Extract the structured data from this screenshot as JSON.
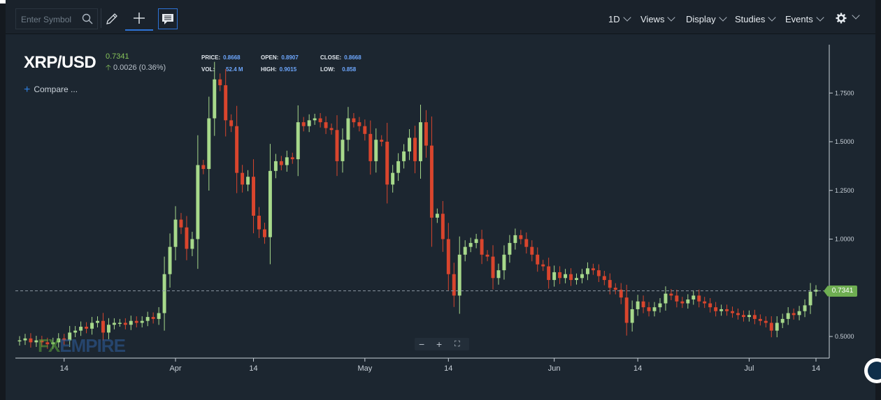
{
  "toolbar": {
    "search_placeholder": "Enter Symbol",
    "menus": [
      "1D",
      "Views",
      "Display",
      "Studies",
      "Events"
    ]
  },
  "header": {
    "symbol": "XRP/USD",
    "last": "0.7341",
    "change": "0.0026 (0.36%)",
    "compare": "Compare ..."
  },
  "ohlc": {
    "price_label": "PRICE:",
    "price": "0.8668",
    "open_label": "OPEN:",
    "open": "0.8907",
    "close_label": "CLOSE:",
    "close": "0.8668",
    "vol_label": "VOL:",
    "vol": "52.4 M",
    "high_label": "HIGH:",
    "high": "0.9015",
    "low_label": "LOW:",
    "low": "0.858"
  },
  "price_tag": "0.7341",
  "watermark": {
    "fx": "FX",
    "empire": "EMPIRE"
  },
  "chart_data": {
    "type": "candlestick",
    "yticks": [
      "1.7500",
      "1.5000",
      "1.2500",
      "1.0000",
      "0.5000"
    ],
    "ylim": [
      0.45,
      1.99
    ],
    "xticks": [
      "14",
      "Apr",
      "14",
      "May",
      "14",
      "Jun",
      "14",
      "Jul",
      "14"
    ],
    "last_price": 0.7341,
    "up_color": "#a7d98b",
    "down_color": "#d9452d",
    "closes": [
      0.48,
      0.49,
      0.47,
      0.48,
      0.47,
      0.46,
      0.47,
      0.49,
      0.48,
      0.52,
      0.53,
      0.55,
      0.54,
      0.57,
      0.58,
      0.52,
      0.56,
      0.57,
      0.57,
      0.56,
      0.58,
      0.57,
      0.58,
      0.6,
      0.59,
      0.62,
      0.82,
      0.96,
      1.1,
      1.06,
      0.95,
      1.0,
      1.38,
      1.36,
      1.62,
      1.82,
      1.79,
      1.61,
      1.58,
      1.34,
      1.28,
      1.32,
      1.12,
      1.05,
      1.01,
      1.35,
      1.4,
      1.38,
      1.42,
      1.41,
      1.6,
      1.58,
      1.61,
      1.62,
      1.6,
      1.57,
      1.56,
      1.4,
      1.51,
      1.62,
      1.6,
      1.58,
      1.54,
      1.4,
      1.51,
      1.5,
      1.28,
      1.34,
      1.4,
      1.45,
      1.52,
      1.4,
      1.6,
      1.48,
      1.11,
      1.13,
      1.0,
      0.82,
      0.71,
      0.92,
      0.96,
      0.98,
      1.0,
      0.92,
      0.91,
      0.8,
      0.84,
      0.92,
      0.98,
      1.02,
      1.0,
      0.96,
      0.92,
      0.87,
      0.86,
      0.79,
      0.83,
      0.8,
      0.82,
      0.79,
      0.8,
      0.82,
      0.85,
      0.84,
      0.81,
      0.79,
      0.75,
      0.74,
      0.7,
      0.57,
      0.64,
      0.68,
      0.65,
      0.63,
      0.65,
      0.67,
      0.72,
      0.71,
      0.68,
      0.67,
      0.69,
      0.71,
      0.68,
      0.67,
      0.65,
      0.63,
      0.64,
      0.63,
      0.62,
      0.61,
      0.6,
      0.61,
      0.59,
      0.58,
      0.57,
      0.53,
      0.57,
      0.59,
      0.62,
      0.61,
      0.63,
      0.66,
      0.73,
      0.74
    ]
  }
}
